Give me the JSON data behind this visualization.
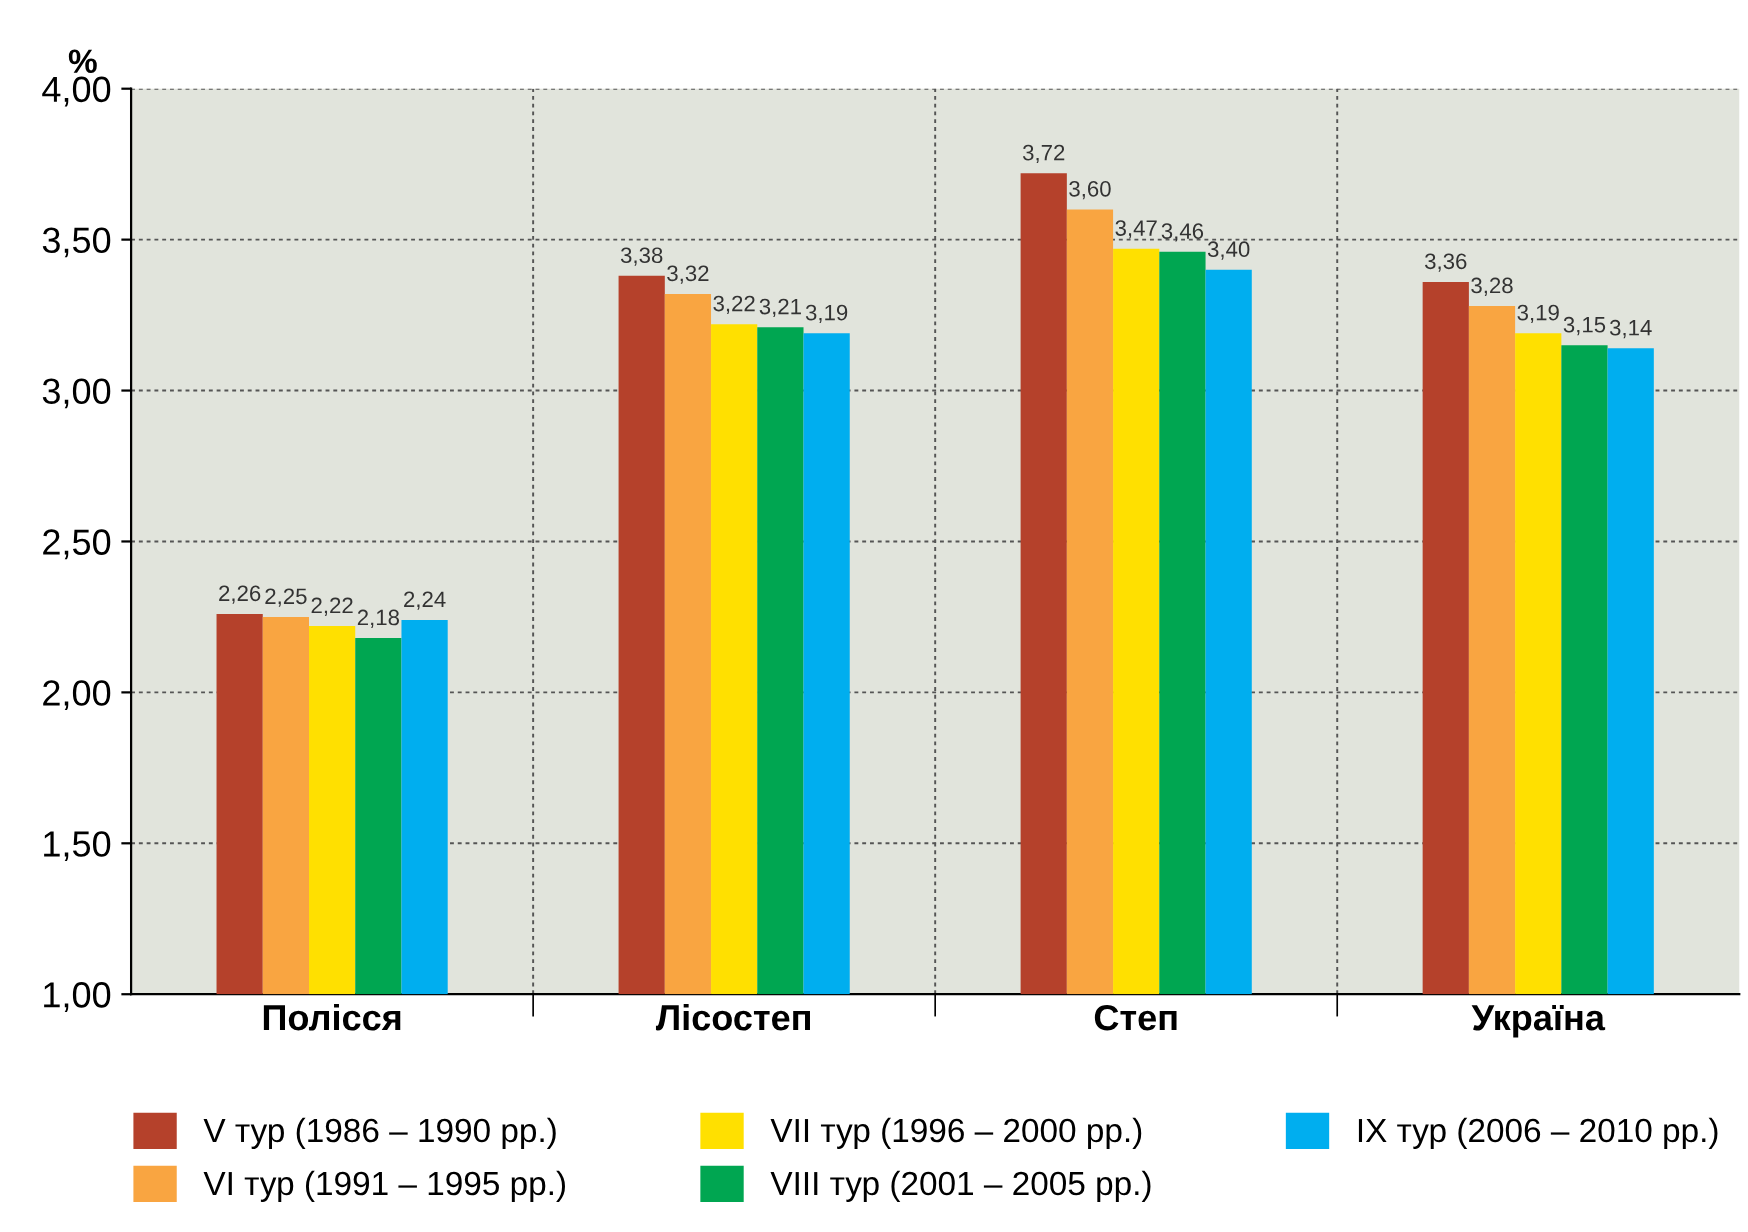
{
  "chart_data": {
    "type": "bar",
    "ylabel": "%",
    "categories": [
      "Полісся",
      "Лісостеп",
      "Степ",
      "Україна"
    ],
    "series": [
      {
        "name": "V тур (1986 – 1990 рр.)",
        "color": "#b5412b",
        "values": [
          2.26,
          3.38,
          3.72,
          3.36
        ]
      },
      {
        "name": "VI тур (1991 – 1995 рр.)",
        "color": "#f9a541",
        "values": [
          2.25,
          3.32,
          3.6,
          3.28
        ]
      },
      {
        "name": "VII тур (1996 – 2000 рр.)",
        "color": "#ffe000",
        "values": [
          2.22,
          3.22,
          3.47,
          3.19
        ]
      },
      {
        "name": "VIII тур (2001 – 2005 рр.)",
        "color": "#00a651",
        "values": [
          2.18,
          3.21,
          3.46,
          3.15
        ]
      },
      {
        "name": "IX тур (2006 – 2010 рр.)",
        "color": "#00aeef",
        "values": [
          2.24,
          3.19,
          3.4,
          3.14
        ]
      }
    ],
    "ylim": [
      1.0,
      4.0
    ],
    "yticks": [
      {
        "value": 1.0,
        "label": "1,00"
      },
      {
        "value": 1.5,
        "label": "1,50"
      },
      {
        "value": 2.0,
        "label": "2,00"
      },
      {
        "value": 2.5,
        "label": "2,50"
      },
      {
        "value": 3.0,
        "label": "3,00"
      },
      {
        "value": 3.5,
        "label": "3,50"
      },
      {
        "value": 4.0,
        "label": "4,00"
      }
    ],
    "value_labels": [
      [
        "2,26",
        "3,38",
        "3,72",
        "3,36"
      ],
      [
        "2,25",
        "3,32",
        "3,60",
        "3,28"
      ],
      [
        "2,22",
        "3,22",
        "3,47",
        "3,19"
      ],
      [
        "2,18",
        "3,21",
        "3,46",
        "3,15"
      ],
      [
        "2,24",
        "3,19",
        "3,40",
        "3,14"
      ]
    ],
    "grid": true,
    "legend": "bottom"
  }
}
